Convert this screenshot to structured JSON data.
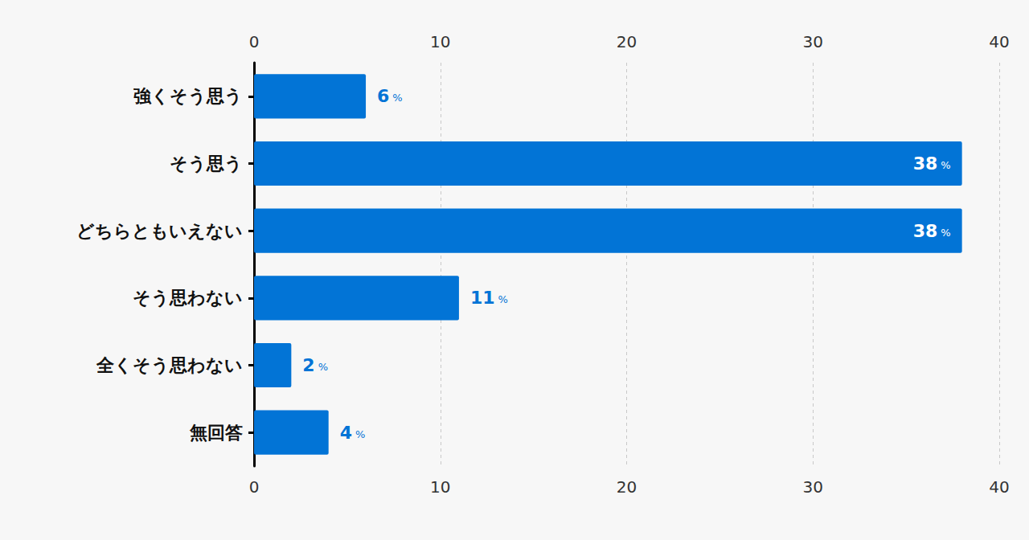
{
  "chart_data": {
    "type": "bar",
    "orientation": "horizontal",
    "categories": [
      "強くそう思う",
      "そう思う",
      "どちらともいえない",
      "そう思わない",
      "全くそう思わない",
      "無回答"
    ],
    "values": [
      6,
      38,
      38,
      11,
      2,
      4
    ],
    "value_labels": [
      "6%",
      "38%",
      "38%",
      "11%",
      "2%",
      "4%"
    ],
    "color": "#0274d6",
    "xlim": [
      0,
      40
    ],
    "xticks": [
      0,
      10,
      20,
      30,
      40
    ],
    "grid": true,
    "data_labels": true
  }
}
